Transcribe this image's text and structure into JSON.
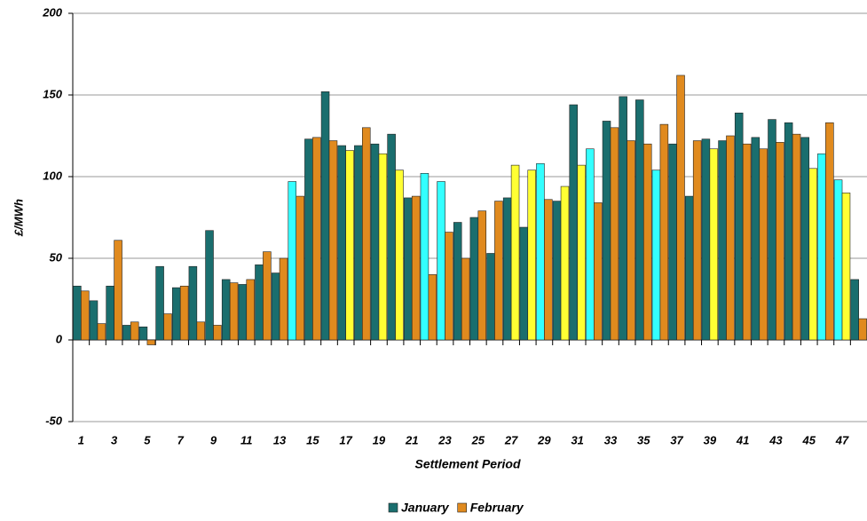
{
  "chart_data": {
    "type": "bar",
    "x_label": "Settlement Period",
    "y_label": "£/MWh",
    "categories": [
      "1",
      null,
      "3",
      null,
      "5",
      null,
      "7",
      null,
      "9",
      null,
      "11",
      null,
      "13",
      null,
      "15",
      null,
      "17",
      null,
      "19",
      null,
      "21",
      null,
      "23",
      null,
      "25",
      null,
      "27",
      null,
      "29",
      null,
      "31",
      null,
      "33",
      null,
      "35",
      null,
      "37",
      null,
      "39",
      null,
      "41",
      null,
      "43",
      null,
      "45",
      null,
      "47",
      null
    ],
    "series": [
      {
        "name": "January",
        "color": "#1a6e6e",
        "values": [
          33,
          24,
          33,
          9,
          8,
          45,
          32,
          45,
          67,
          37,
          34,
          46,
          41,
          97,
          123,
          152,
          119,
          119,
          120,
          126,
          87,
          102,
          97,
          72,
          75,
          53,
          87,
          69,
          108,
          85,
          144,
          117,
          134,
          149,
          147,
          104,
          120,
          88,
          123,
          122,
          139,
          124,
          135,
          133,
          124,
          114,
          98,
          37
        ],
        "colors": [
          "#1a6e6e",
          "#1a6e6e",
          "#1a6e6e",
          "#1a6e6e",
          "#1a6e6e",
          "#1a6e6e",
          "#1a6e6e",
          "#1a6e6e",
          "#1a6e6e",
          "#1a6e6e",
          "#1a6e6e",
          "#1a6e6e",
          "#1a6e6e",
          "#33ffff",
          "#1a6e6e",
          "#1a6e6e",
          "#1a6e6e",
          "#1a6e6e",
          "#1a6e6e",
          "#1a6e6e",
          "#1a6e6e",
          "#33ffff",
          "#33ffff",
          "#1a6e6e",
          "#1a6e6e",
          "#1a6e6e",
          "#1a6e6e",
          "#1a6e6e",
          "#33ffff",
          "#1a6e6e",
          "#1a6e6e",
          "#33ffff",
          "#1a6e6e",
          "#1a6e6e",
          "#1a6e6e",
          "#33ffff",
          "#1a6e6e",
          "#1a6e6e",
          "#1a6e6e",
          "#1a6e6e",
          "#1a6e6e",
          "#1a6e6e",
          "#1a6e6e",
          "#1a6e6e",
          "#1a6e6e",
          "#33ffff",
          "#33ffff",
          "#1a6e6e"
        ]
      },
      {
        "name": "February",
        "color": "#e08a1e",
        "values": [
          30,
          10,
          61,
          11,
          -3,
          16,
          33,
          11,
          9,
          35,
          37,
          54,
          50,
          88,
          124,
          122,
          116,
          130,
          114,
          104,
          88,
          40,
          66,
          50,
          79,
          85,
          107,
          104,
          86,
          94,
          107,
          84,
          130,
          122,
          120,
          132,
          162,
          122,
          117,
          125,
          120,
          117,
          121,
          126,
          105,
          133,
          90,
          13
        ],
        "colors": [
          "#e08a1e",
          "#e08a1e",
          "#e08a1e",
          "#e08a1e",
          "#e08a1e",
          "#e08a1e",
          "#e08a1e",
          "#e08a1e",
          "#e08a1e",
          "#e08a1e",
          "#e08a1e",
          "#e08a1e",
          "#e08a1e",
          "#e08a1e",
          "#e08a1e",
          "#e08a1e",
          "#ffff33",
          "#e08a1e",
          "#ffff33",
          "#ffff33",
          "#e08a1e",
          "#e08a1e",
          "#e08a1e",
          "#e08a1e",
          "#e08a1e",
          "#e08a1e",
          "#ffff33",
          "#ffff33",
          "#e08a1e",
          "#ffff33",
          "#ffff33",
          "#e08a1e",
          "#e08a1e",
          "#e08a1e",
          "#e08a1e",
          "#e08a1e",
          "#e08a1e",
          "#e08a1e",
          "#ffff33",
          "#e08a1e",
          "#e08a1e",
          "#e08a1e",
          "#e08a1e",
          "#e08a1e",
          "#ffff33",
          "#e08a1e",
          "#ffff33",
          "#e08a1e"
        ]
      }
    ],
    "ylim": [
      -50,
      200
    ],
    "yticks": [
      -50,
      0,
      50,
      100,
      150,
      200
    ],
    "grid": true,
    "legend": "bottom"
  }
}
